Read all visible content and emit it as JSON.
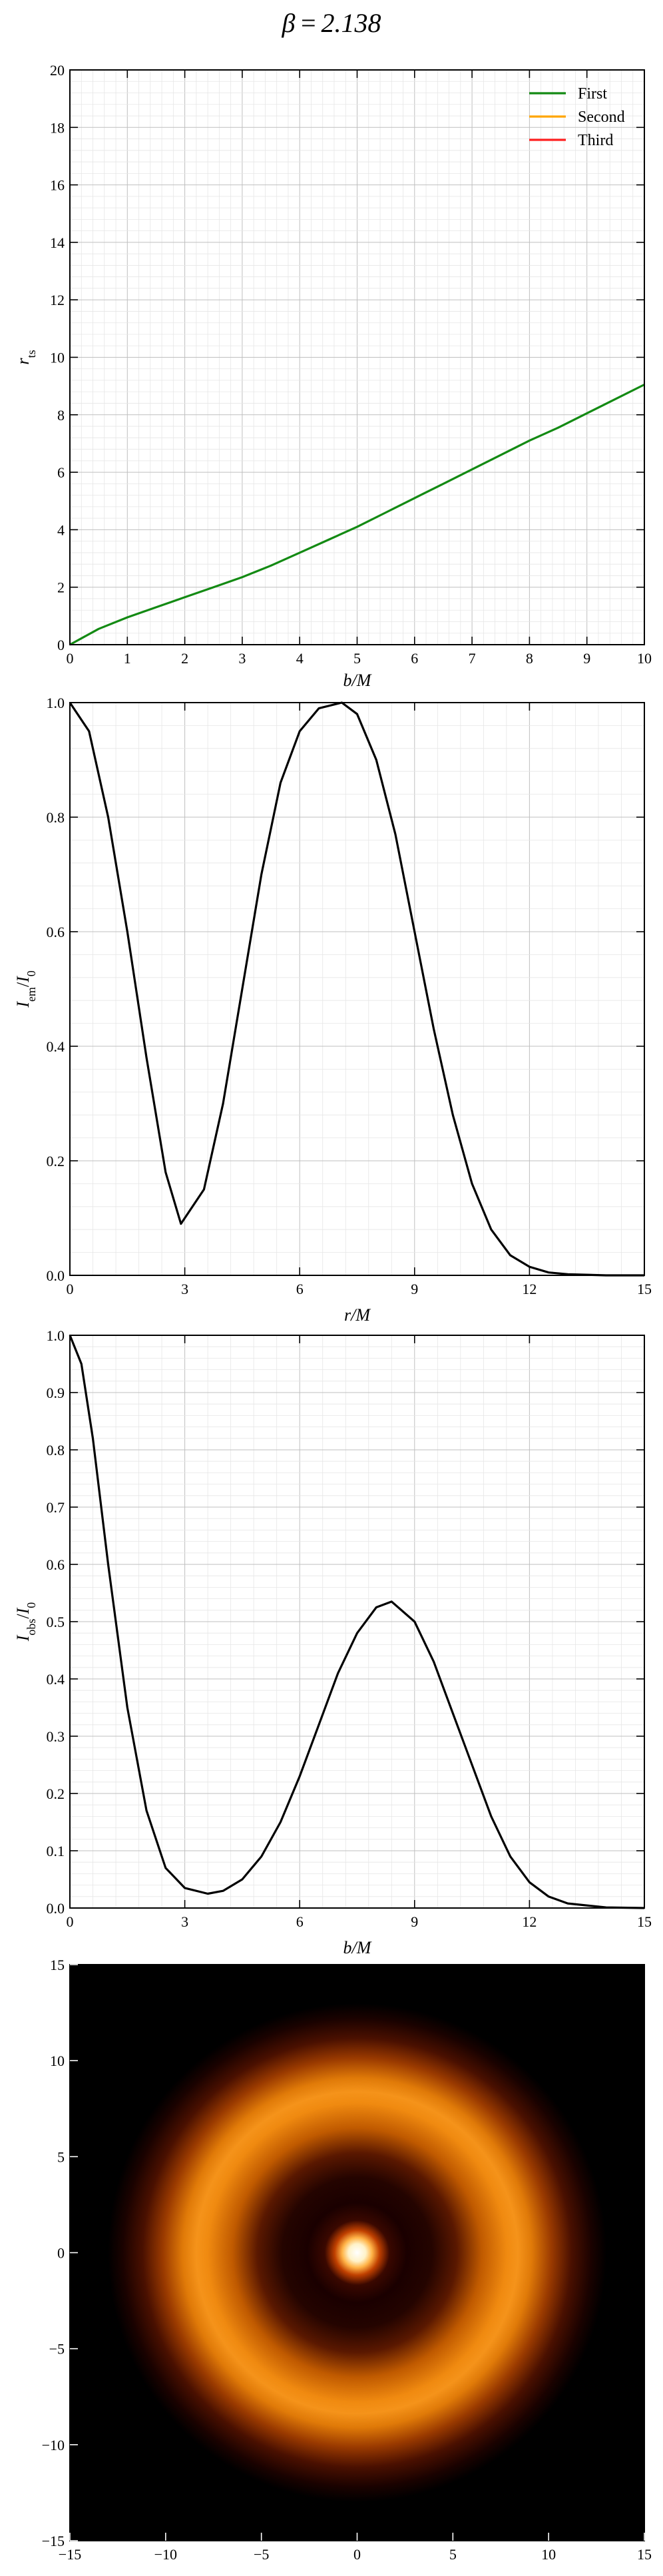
{
  "figure": {
    "title_html": "β = 2.138",
    "title_parts": {
      "symbol": "β",
      "eq": "=",
      "value": "2.138"
    }
  },
  "colors": {
    "first": "#138a13",
    "second": "#ffa500",
    "third": "#ff2020",
    "line": "#000000"
  },
  "chart_data": [
    {
      "type": "line",
      "title": "",
      "xlabel": "b/M",
      "ylabel": "r_ts",
      "xlim": [
        0,
        10
      ],
      "ylim": [
        0,
        20
      ],
      "xticks": [
        "0",
        "1",
        "2",
        "3",
        "4",
        "5",
        "6",
        "7",
        "8",
        "9",
        "10"
      ],
      "yticks": [
        "0",
        "2",
        "4",
        "6",
        "8",
        "10",
        "12",
        "14",
        "16",
        "18",
        "20"
      ],
      "grid": true,
      "legend": "top-right",
      "series": [
        {
          "name": "First",
          "color": "#138a13",
          "x": [
            0,
            0.5,
            1,
            1.5,
            2,
            2.5,
            3,
            3.5,
            4,
            4.5,
            5,
            5.5,
            6,
            6.5,
            7,
            7.5,
            8,
            8.5,
            9,
            9.5,
            10
          ],
          "y": [
            0.0,
            0.55,
            0.95,
            1.3,
            1.65,
            2.0,
            2.35,
            2.75,
            3.2,
            3.65,
            4.1,
            4.6,
            5.1,
            5.6,
            6.1,
            6.6,
            7.1,
            7.55,
            8.05,
            8.55,
            9.05
          ]
        },
        {
          "name": "Second",
          "color": "#ffa500",
          "x": [],
          "y": []
        },
        {
          "name": "Third",
          "color": "#ff2020",
          "x": [],
          "y": []
        }
      ]
    },
    {
      "type": "line",
      "title": "",
      "xlabel": "r/M",
      "ylabel": "I_em/I_0",
      "xlim": [
        0,
        15
      ],
      "ylim": [
        0,
        1.0
      ],
      "xticks": [
        "0",
        "3",
        "6",
        "9",
        "12",
        "15"
      ],
      "yticks": [
        "0.0",
        "0.2",
        "0.4",
        "0.6",
        "0.8",
        "1.0"
      ],
      "grid": true,
      "series": [
        {
          "name": "",
          "color": "#000000",
          "x": [
            0,
            0.5,
            1,
            1.5,
            2,
            2.5,
            2.9,
            3.5,
            4,
            4.5,
            5,
            5.5,
            6,
            6.5,
            7.1,
            7.5,
            8,
            8.5,
            9,
            9.5,
            10,
            10.5,
            11,
            11.5,
            12,
            12.5,
            13,
            14,
            15
          ],
          "y": [
            1.0,
            0.95,
            0.8,
            0.6,
            0.38,
            0.18,
            0.09,
            0.15,
            0.3,
            0.5,
            0.7,
            0.86,
            0.95,
            0.99,
            1.0,
            0.98,
            0.9,
            0.77,
            0.6,
            0.43,
            0.28,
            0.16,
            0.08,
            0.035,
            0.015,
            0.005,
            0.002,
            0.0,
            0.0
          ]
        }
      ]
    },
    {
      "type": "line",
      "title": "",
      "xlabel": "b/M",
      "ylabel": "I_obs/I_0",
      "xlim": [
        0,
        15
      ],
      "ylim": [
        0,
        1.0
      ],
      "xticks": [
        "0",
        "3",
        "6",
        "9",
        "12",
        "15"
      ],
      "yticks": [
        "0.0",
        "0.1",
        "0.2",
        "0.3",
        "0.4",
        "0.5",
        "0.6",
        "0.7",
        "0.8",
        "0.9",
        "1.0"
      ],
      "grid": true,
      "series": [
        {
          "name": "",
          "color": "#000000",
          "x": [
            0,
            0.3,
            0.6,
            1,
            1.5,
            2,
            2.5,
            3,
            3.6,
            4,
            4.5,
            5,
            5.5,
            6,
            6.5,
            7,
            7.5,
            8,
            8.4,
            9,
            9.5,
            10,
            10.5,
            11,
            11.5,
            12,
            12.5,
            13,
            14,
            15
          ],
          "y": [
            1.0,
            0.95,
            0.82,
            0.6,
            0.35,
            0.17,
            0.07,
            0.035,
            0.025,
            0.03,
            0.05,
            0.09,
            0.15,
            0.23,
            0.32,
            0.41,
            0.48,
            0.525,
            0.535,
            0.5,
            0.43,
            0.34,
            0.25,
            0.16,
            0.09,
            0.045,
            0.02,
            0.008,
            0.001,
            0.0
          ]
        }
      ]
    },
    {
      "type": "heatmap",
      "title": "",
      "xlabel": "",
      "ylabel": "",
      "xlim": [
        -15,
        15
      ],
      "ylim": [
        -15,
        15
      ],
      "xticks": [
        "−15",
        "−10",
        "−5",
        "0",
        "5",
        "10",
        "15"
      ],
      "yticks": [
        "−15",
        "−10",
        "−5",
        "0",
        "5",
        "10",
        "15"
      ],
      "colormap": "afmhot",
      "description_values": {
        "center_peak_intensity": 1.0,
        "ring_radius": 8.4,
        "ring_peak_intensity": 0.535
      }
    }
  ]
}
